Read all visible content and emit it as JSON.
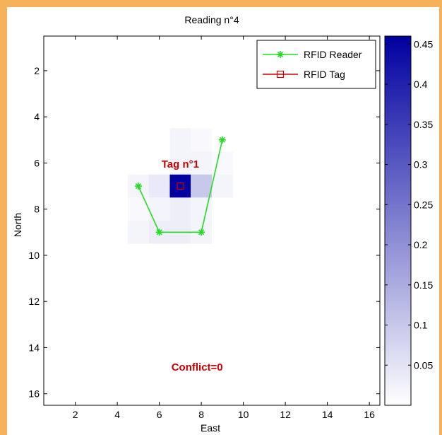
{
  "chart_data": {
    "type": "heatmap",
    "title": "Reading n°4",
    "xlabel": "East",
    "ylabel": "North",
    "xlim": [
      0.5,
      16.5
    ],
    "ylim": [
      0.5,
      16.5
    ],
    "y_reversed": true,
    "xticks": [
      2,
      4,
      6,
      8,
      10,
      12,
      14,
      16
    ],
    "yticks": [
      2,
      4,
      6,
      8,
      10,
      12,
      14,
      16
    ],
    "grid": false,
    "colormap": {
      "low": "#ffffff",
      "high": "#0000a0"
    },
    "colorbar": {
      "range": [
        0,
        0.46
      ],
      "ticks": [
        0.05,
        0.1,
        0.15,
        0.2,
        0.25,
        0.3,
        0.35,
        0.4,
        0.45
      ],
      "tick_labels": [
        "0.05",
        "0.1",
        "0.15",
        "0.2",
        "0.25",
        "0.3",
        "0.35",
        "0.4",
        "0.45"
      ]
    },
    "cells": [
      {
        "x": 7,
        "y": 5,
        "value": 0.02
      },
      {
        "x": 8,
        "y": 5,
        "value": 0.01
      },
      {
        "x": 7,
        "y": 6,
        "value": 0.02
      },
      {
        "x": 8,
        "y": 6,
        "value": 0.02
      },
      {
        "x": 9,
        "y": 6,
        "value": 0.01
      },
      {
        "x": 5,
        "y": 7,
        "value": 0.02
      },
      {
        "x": 6,
        "y": 7,
        "value": 0.04
      },
      {
        "x": 7,
        "y": 7,
        "value": 0.46
      },
      {
        "x": 8,
        "y": 7,
        "value": 0.1
      },
      {
        "x": 9,
        "y": 7,
        "value": 0.02
      },
      {
        "x": 5,
        "y": 8,
        "value": 0.01
      },
      {
        "x": 6,
        "y": 8,
        "value": 0.02
      },
      {
        "x": 7,
        "y": 8,
        "value": 0.03
      },
      {
        "x": 8,
        "y": 8,
        "value": 0.02
      },
      {
        "x": 5,
        "y": 9,
        "value": 0.02
      },
      {
        "x": 6,
        "y": 9,
        "value": 0.03
      },
      {
        "x": 7,
        "y": 9,
        "value": 0.03
      },
      {
        "x": 8,
        "y": 9,
        "value": 0.02
      }
    ],
    "series": [
      {
        "name": "RFID Reader",
        "color": "#22dd22",
        "marker": "asterisk",
        "points": [
          [
            5,
            7
          ],
          [
            6,
            9
          ],
          [
            8,
            9
          ],
          [
            9,
            5
          ]
        ]
      },
      {
        "name": "RFID Tag",
        "color": "#cc0000",
        "marker": "square",
        "points": [
          [
            7,
            7
          ]
        ]
      }
    ],
    "annotations": [
      {
        "text": "Tag n°1",
        "x": 7,
        "y": 6.2
      },
      {
        "text": "Conflict=0",
        "x": 7.8,
        "y": 15
      }
    ],
    "legend": {
      "position": "top-right",
      "entries": [
        "RFID Reader",
        "RFID Tag"
      ]
    }
  }
}
